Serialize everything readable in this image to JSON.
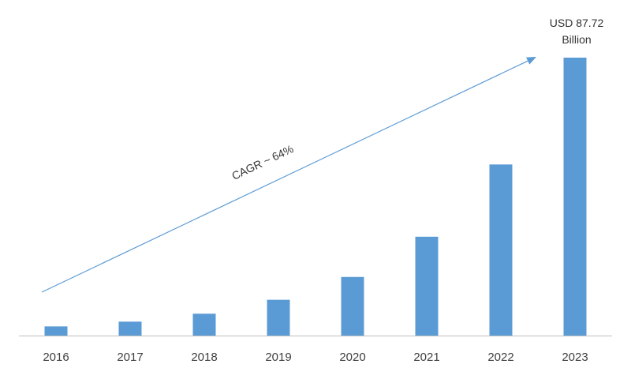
{
  "chart_data": {
    "type": "bar",
    "categories": [
      "2016",
      "2017",
      "2018",
      "2019",
      "2020",
      "2021",
      "2022",
      "2023"
    ],
    "values": [
      2.9,
      4.4,
      6.9,
      11.3,
      18.5,
      31.2,
      54.0,
      87.72
    ],
    "ylim": [
      0,
      100
    ],
    "grid": false,
    "title": "",
    "xlabel": "",
    "ylabel": "",
    "colors": {
      "bar": "#5b9bd5",
      "axis": "#bfbfbf",
      "arrow": "#5b9bd5"
    },
    "annotations": {
      "cagr_label": "CAGR ~ 64%",
      "value_label_line1": "USD 87.72",
      "value_label_line2": "Billion"
    }
  }
}
